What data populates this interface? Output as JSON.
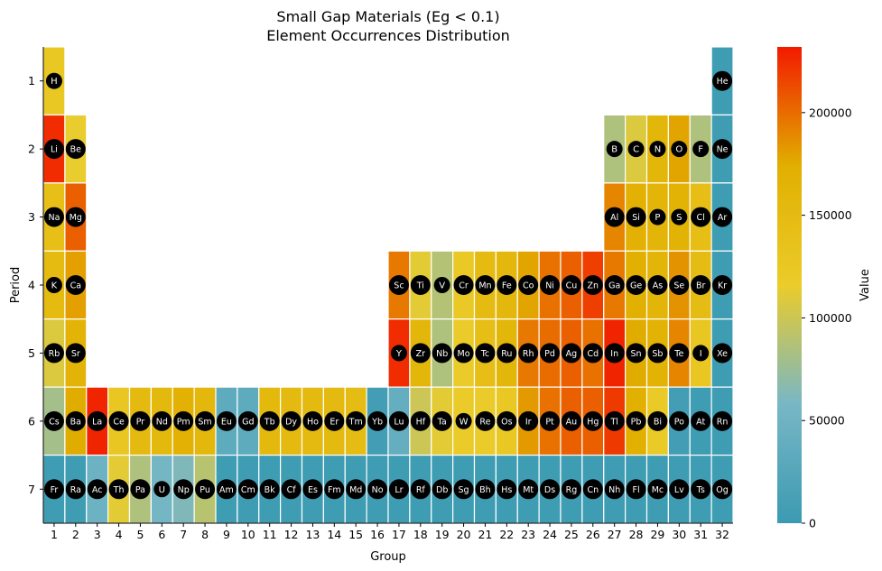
{
  "chart_data": {
    "type": "heatmap",
    "title": "Small Gap Materials (Eg < 0.1)",
    "subtitle": "Element Occurrences Distribution",
    "xlabel": "Group",
    "ylabel": "Period",
    "colorbar_label": "Value",
    "colorbar_range": [
      0,
      232000
    ],
    "colorbar_ticks": [
      0,
      50000,
      100000,
      150000,
      200000
    ],
    "colorbar_tick_labels": [
      "0",
      "50000",
      "100000",
      "150000",
      "200000"
    ],
    "x_ticks": [
      1,
      2,
      3,
      4,
      5,
      6,
      7,
      8,
      9,
      10,
      11,
      12,
      13,
      14,
      15,
      16,
      17,
      18,
      19,
      20,
      21,
      22,
      23,
      24,
      25,
      26,
      27,
      28,
      29,
      30,
      31,
      32
    ],
    "y_ticks": [
      1,
      2,
      3,
      4,
      5,
      6,
      7
    ],
    "colormap": [
      "#3b9ab2",
      "#78b7c5",
      "#ebcc2a",
      "#e1af00",
      "#f21a00"
    ],
    "cells": [
      {
        "el": "H",
        "group": 1,
        "period": 1,
        "value": 125000
      },
      {
        "el": "He",
        "group": 32,
        "period": 1,
        "value": 3000
      },
      {
        "el": "Li",
        "group": 1,
        "period": 2,
        "value": 225000
      },
      {
        "el": "Be",
        "group": 2,
        "period": 2,
        "value": 115000
      },
      {
        "el": "B",
        "group": 27,
        "period": 2,
        "value": 85000
      },
      {
        "el": "C",
        "group": 28,
        "period": 2,
        "value": 108000
      },
      {
        "el": "N",
        "group": 29,
        "period": 2,
        "value": 160000
      },
      {
        "el": "O",
        "group": 30,
        "period": 2,
        "value": 178000
      },
      {
        "el": "F",
        "group": 31,
        "period": 2,
        "value": 85000
      },
      {
        "el": "Ne",
        "group": 32,
        "period": 2,
        "value": 3000
      },
      {
        "el": "Na",
        "group": 1,
        "period": 3,
        "value": 142000
      },
      {
        "el": "Mg",
        "group": 2,
        "period": 3,
        "value": 205000
      },
      {
        "el": "Al",
        "group": 27,
        "period": 3,
        "value": 190000
      },
      {
        "el": "Si",
        "group": 28,
        "period": 3,
        "value": 170000
      },
      {
        "el": "P",
        "group": 29,
        "period": 3,
        "value": 162000
      },
      {
        "el": "S",
        "group": 30,
        "period": 3,
        "value": 168000
      },
      {
        "el": "Cl",
        "group": 31,
        "period": 3,
        "value": 145000
      },
      {
        "el": "Ar",
        "group": 32,
        "period": 3,
        "value": 3000
      },
      {
        "el": "K",
        "group": 1,
        "period": 4,
        "value": 150000
      },
      {
        "el": "Ca",
        "group": 2,
        "period": 4,
        "value": 180000
      },
      {
        "el": "Sc",
        "group": 17,
        "period": 4,
        "value": 195000
      },
      {
        "el": "Ti",
        "group": 18,
        "period": 4,
        "value": 112000
      },
      {
        "el": "V",
        "group": 19,
        "period": 4,
        "value": 88000
      },
      {
        "el": "Cr",
        "group": 20,
        "period": 4,
        "value": 122000
      },
      {
        "el": "Mn",
        "group": 21,
        "period": 4,
        "value": 150000
      },
      {
        "el": "Fe",
        "group": 22,
        "period": 4,
        "value": 158000
      },
      {
        "el": "Co",
        "group": 23,
        "period": 4,
        "value": 178000
      },
      {
        "el": "Ni",
        "group": 24,
        "period": 4,
        "value": 198000
      },
      {
        "el": "Cu",
        "group": 25,
        "period": 4,
        "value": 205000
      },
      {
        "el": "Zn",
        "group": 26,
        "period": 4,
        "value": 218000
      },
      {
        "el": "Ga",
        "group": 27,
        "period": 4,
        "value": 195000
      },
      {
        "el": "Ge",
        "group": 28,
        "period": 4,
        "value": 172000
      },
      {
        "el": "As",
        "group": 29,
        "period": 4,
        "value": 162000
      },
      {
        "el": "Se",
        "group": 30,
        "period": 4,
        "value": 185000
      },
      {
        "el": "Br",
        "group": 31,
        "period": 4,
        "value": 148000
      },
      {
        "el": "Kr",
        "group": 32,
        "period": 4,
        "value": 3000
      },
      {
        "el": "Rb",
        "group": 1,
        "period": 5,
        "value": 108000
      },
      {
        "el": "Sr",
        "group": 2,
        "period": 5,
        "value": 165000
      },
      {
        "el": "Y",
        "group": 17,
        "period": 5,
        "value": 225000
      },
      {
        "el": "Zr",
        "group": 18,
        "period": 5,
        "value": 160000
      },
      {
        "el": "Nb",
        "group": 19,
        "period": 5,
        "value": 85000
      },
      {
        "el": "Mo",
        "group": 20,
        "period": 5,
        "value": 118000
      },
      {
        "el": "Tc",
        "group": 21,
        "period": 5,
        "value": 145000
      },
      {
        "el": "Ru",
        "group": 22,
        "period": 5,
        "value": 160000
      },
      {
        "el": "Rh",
        "group": 23,
        "period": 5,
        "value": 195000
      },
      {
        "el": "Pd",
        "group": 24,
        "period": 5,
        "value": 200000
      },
      {
        "el": "Ag",
        "group": 25,
        "period": 5,
        "value": 205000
      },
      {
        "el": "Cd",
        "group": 26,
        "period": 5,
        "value": 198000
      },
      {
        "el": "In",
        "group": 27,
        "period": 5,
        "value": 228000
      },
      {
        "el": "Sn",
        "group": 28,
        "period": 5,
        "value": 175000
      },
      {
        "el": "Sb",
        "group": 29,
        "period": 5,
        "value": 168000
      },
      {
        "el": "Te",
        "group": 30,
        "period": 5,
        "value": 190000
      },
      {
        "el": "I",
        "group": 31,
        "period": 5,
        "value": 128000
      },
      {
        "el": "Xe",
        "group": 32,
        "period": 5,
        "value": 3000
      },
      {
        "el": "Cs",
        "group": 1,
        "period": 6,
        "value": 80000
      },
      {
        "el": "Ba",
        "group": 2,
        "period": 6,
        "value": 175000
      },
      {
        "el": "La",
        "group": 3,
        "period": 6,
        "value": 228000
      },
      {
        "el": "Ce",
        "group": 4,
        "period": 6,
        "value": 128000
      },
      {
        "el": "Pr",
        "group": 5,
        "period": 6,
        "value": 152000
      },
      {
        "el": "Nd",
        "group": 6,
        "period": 6,
        "value": 155000
      },
      {
        "el": "Pm",
        "group": 7,
        "period": 6,
        "value": 170000
      },
      {
        "el": "Sm",
        "group": 8,
        "period": 6,
        "value": 158000
      },
      {
        "el": "Eu",
        "group": 9,
        "period": 6,
        "value": 33000
      },
      {
        "el": "Gd",
        "group": 10,
        "period": 6,
        "value": 33000
      },
      {
        "el": "Tb",
        "group": 11,
        "period": 6,
        "value": 155000
      },
      {
        "el": "Dy",
        "group": 12,
        "period": 6,
        "value": 152000
      },
      {
        "el": "Ho",
        "group": 13,
        "period": 6,
        "value": 152000
      },
      {
        "el": "Er",
        "group": 14,
        "period": 6,
        "value": 152000
      },
      {
        "el": "Tm",
        "group": 15,
        "period": 6,
        "value": 148000
      },
      {
        "el": "Yb",
        "group": 16,
        "period": 6,
        "value": 8000
      },
      {
        "el": "Lu",
        "group": 17,
        "period": 6,
        "value": 40000
      },
      {
        "el": "Hf",
        "group": 18,
        "period": 6,
        "value": 100000
      },
      {
        "el": "Ta",
        "group": 19,
        "period": 6,
        "value": 112000
      },
      {
        "el": "W",
        "group": 20,
        "period": 6,
        "value": 118000
      },
      {
        "el": "Re",
        "group": 21,
        "period": 6,
        "value": 118000
      },
      {
        "el": "Os",
        "group": 22,
        "period": 6,
        "value": 125000
      },
      {
        "el": "Ir",
        "group": 23,
        "period": 6,
        "value": 182000
      },
      {
        "el": "Pt",
        "group": 24,
        "period": 6,
        "value": 198000
      },
      {
        "el": "Au",
        "group": 25,
        "period": 6,
        "value": 205000
      },
      {
        "el": "Hg",
        "group": 26,
        "period": 6,
        "value": 205000
      },
      {
        "el": "Tl",
        "group": 27,
        "period": 6,
        "value": 220000
      },
      {
        "el": "Pb",
        "group": 28,
        "period": 6,
        "value": 172000
      },
      {
        "el": "Bi",
        "group": 29,
        "period": 6,
        "value": 120000
      },
      {
        "el": "Po",
        "group": 30,
        "period": 6,
        "value": 8000
      },
      {
        "el": "At",
        "group": 31,
        "period": 6,
        "value": 3000
      },
      {
        "el": "Rn",
        "group": 32,
        "period": 6,
        "value": 3000
      },
      {
        "el": "Fr",
        "group": 1,
        "period": 7,
        "value": 3000
      },
      {
        "el": "Ra",
        "group": 2,
        "period": 7,
        "value": 3000
      },
      {
        "el": "Ac",
        "group": 3,
        "period": 7,
        "value": 48000
      },
      {
        "el": "Th",
        "group": 4,
        "period": 7,
        "value": 112000
      },
      {
        "el": "Pa",
        "group": 5,
        "period": 7,
        "value": 85000
      },
      {
        "el": "U",
        "group": 6,
        "period": 7,
        "value": 55000
      },
      {
        "el": "Np",
        "group": 7,
        "period": 7,
        "value": 62000
      },
      {
        "el": "Pu",
        "group": 8,
        "period": 7,
        "value": 90000
      },
      {
        "el": "Am",
        "group": 9,
        "period": 7,
        "value": 3000
      },
      {
        "el": "Cm",
        "group": 10,
        "period": 7,
        "value": 3000
      },
      {
        "el": "Bk",
        "group": 11,
        "period": 7,
        "value": 3000
      },
      {
        "el": "Cf",
        "group": 12,
        "period": 7,
        "value": 3000
      },
      {
        "el": "Es",
        "group": 13,
        "period": 7,
        "value": 3000
      },
      {
        "el": "Fm",
        "group": 14,
        "period": 7,
        "value": 3000
      },
      {
        "el": "Md",
        "group": 15,
        "period": 7,
        "value": 3000
      },
      {
        "el": "No",
        "group": 16,
        "period": 7,
        "value": 3000
      },
      {
        "el": "Lr",
        "group": 17,
        "period": 7,
        "value": 3000
      },
      {
        "el": "Rf",
        "group": 18,
        "period": 7,
        "value": 3000
      },
      {
        "el": "Db",
        "group": 19,
        "period": 7,
        "value": 3000
      },
      {
        "el": "Sg",
        "group": 20,
        "period": 7,
        "value": 3000
      },
      {
        "el": "Bh",
        "group": 21,
        "period": 7,
        "value": 3000
      },
      {
        "el": "Hs",
        "group": 22,
        "period": 7,
        "value": 3000
      },
      {
        "el": "Mt",
        "group": 23,
        "period": 7,
        "value": 3000
      },
      {
        "el": "Ds",
        "group": 24,
        "period": 7,
        "value": 3000
      },
      {
        "el": "Rg",
        "group": 25,
        "period": 7,
        "value": 3000
      },
      {
        "el": "Cn",
        "group": 26,
        "period": 7,
        "value": 3000
      },
      {
        "el": "Nh",
        "group": 27,
        "period": 7,
        "value": 3000
      },
      {
        "el": "Fl",
        "group": 28,
        "period": 7,
        "value": 3000
      },
      {
        "el": "Mc",
        "group": 29,
        "period": 7,
        "value": 3000
      },
      {
        "el": "Lv",
        "group": 30,
        "period": 7,
        "value": 3000
      },
      {
        "el": "Ts",
        "group": 31,
        "period": 7,
        "value": 3000
      },
      {
        "el": "Og",
        "group": 32,
        "period": 7,
        "value": 3000
      }
    ]
  }
}
